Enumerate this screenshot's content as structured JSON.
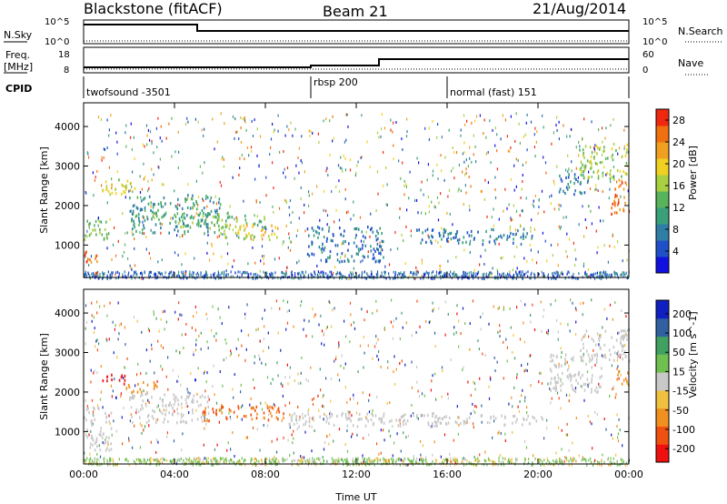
{
  "header": {
    "radar": "Blackstone (fitACF)",
    "beam": "Beam 21",
    "date": "21/Aug/2014"
  },
  "status": {
    "left_labels": [
      "N.Sky",
      "Freq.",
      "[MHz]",
      "CPID"
    ],
    "right_labels": [
      "N.Search",
      "Nave"
    ],
    "nsky_ticks": [
      "10^5",
      "10^0"
    ],
    "nsearch_ticks": [
      "10^5",
      "10^0"
    ],
    "freq_ticks": [
      "18",
      "8"
    ],
    "nave_ticks": [
      "60",
      "0"
    ],
    "cpid_segments": [
      {
        "label": "twofsound -3501",
        "start_h": 0
      },
      {
        "label": "rbsp 200",
        "start_h": 10
      },
      {
        "label": "normal (fast) 151",
        "start_h": 16
      }
    ]
  },
  "chart_data": [
    {
      "type": "heatmap",
      "name": "power",
      "ylabel": "Slant Range [km]",
      "xlabel": "",
      "x_ticks": [
        "00:00",
        "04:00",
        "08:00",
        "12:00",
        "16:00",
        "20:00",
        "00:00"
      ],
      "xlim_hours": [
        0,
        24
      ],
      "y_ticks": [
        1000,
        2000,
        3000,
        4000
      ],
      "ylim_km": [
        180,
        4600
      ],
      "colorbar": {
        "label": "Power [dB]",
        "ticks": [
          "4",
          "8",
          "12",
          "16",
          "20",
          "24",
          "28"
        ],
        "range": [
          0,
          30
        ],
        "colors": [
          "#1010e0",
          "#2050c8",
          "#2f7ea6",
          "#3aa07a",
          "#58b45a",
          "#a8d040",
          "#f0d020",
          "#f0a020",
          "#f07010",
          "#f02810"
        ]
      },
      "echo_regions": [
        {
          "t0": 0.0,
          "t1": 1.2,
          "r0": 1150,
          "r1": 1650,
          "db": 14
        },
        {
          "t0": 0.0,
          "t1": 0.6,
          "r0": 300,
          "r1": 900,
          "db": 25
        },
        {
          "t0": 0.8,
          "t1": 2.3,
          "r0": 2300,
          "r1": 2750,
          "db": 18
        },
        {
          "t0": 2.0,
          "t1": 6.0,
          "r0": 1300,
          "r1": 2300,
          "db": 10
        },
        {
          "t0": 4.0,
          "t1": 8.0,
          "r0": 1450,
          "r1": 1850,
          "db": 14
        },
        {
          "t0": 6.0,
          "t1": 8.6,
          "r0": 1150,
          "r1": 1550,
          "db": 18
        },
        {
          "t0": 9.8,
          "t1": 13.2,
          "r0": 600,
          "r1": 1500,
          "db": 7
        },
        {
          "t0": 14.5,
          "t1": 19.8,
          "r0": 1050,
          "r1": 1450,
          "db": 7
        },
        {
          "t0": 20.8,
          "t1": 22.2,
          "r0": 2300,
          "r1": 2900,
          "db": 8
        },
        {
          "t0": 21.8,
          "t1": 24.0,
          "r0": 2700,
          "r1": 3600,
          "db": 16
        },
        {
          "t0": 23.2,
          "t1": 24.0,
          "r0": 1800,
          "r1": 2700,
          "db": 26
        }
      ]
    },
    {
      "type": "heatmap",
      "name": "velocity",
      "ylabel": "Slant Range [km]",
      "xlabel": "Time UT",
      "x_ticks": [
        "00:00",
        "04:00",
        "08:00",
        "12:00",
        "16:00",
        "20:00",
        "00:00"
      ],
      "xlim_hours": [
        0,
        24
      ],
      "y_ticks": [
        1000,
        2000,
        3000,
        4000
      ],
      "ylim_km": [
        180,
        4600
      ],
      "colorbar": {
        "label": "Velocity [m s^-1]",
        "ticks": [
          "200",
          "100",
          "50",
          "15",
          "-15",
          "-50",
          "-100",
          "-200"
        ],
        "range": [
          -250,
          250
        ],
        "colors": [
          "#f01010",
          "#f05010",
          "#f09020",
          "#f0c040",
          "#c8c8c8",
          "#70c050",
          "#40a060",
          "#3060a0",
          "#1020c0"
        ]
      },
      "echo_regions": [
        {
          "t0": 0.0,
          "t1": 1.2,
          "r0": 500,
          "r1": 1650,
          "v": 0
        },
        {
          "t0": 0.8,
          "t1": 1.8,
          "r0": 2200,
          "r1": 2500,
          "v": -220
        },
        {
          "t0": 1.8,
          "t1": 3.2,
          "r0": 2000,
          "r1": 2300,
          "v": -120
        },
        {
          "t0": 2.0,
          "t1": 5.5,
          "r0": 1250,
          "r1": 2000,
          "v": 0
        },
        {
          "t0": 5.2,
          "t1": 8.8,
          "r0": 1300,
          "r1": 1700,
          "v": -140
        },
        {
          "t0": 9.0,
          "t1": 16.0,
          "r0": 1150,
          "r1": 1500,
          "v": 0
        },
        {
          "t0": 15.0,
          "t1": 20.5,
          "r0": 1200,
          "r1": 1450,
          "v": 0
        },
        {
          "t0": 20.5,
          "t1": 22.8,
          "r0": 2000,
          "r1": 3000,
          "v": 0
        },
        {
          "t0": 21.8,
          "t1": 24.0,
          "r0": 2800,
          "r1": 3600,
          "v": 0
        },
        {
          "t0": 23.4,
          "t1": 24.0,
          "r0": 2200,
          "r1": 2600,
          "v": -100
        }
      ]
    }
  ]
}
